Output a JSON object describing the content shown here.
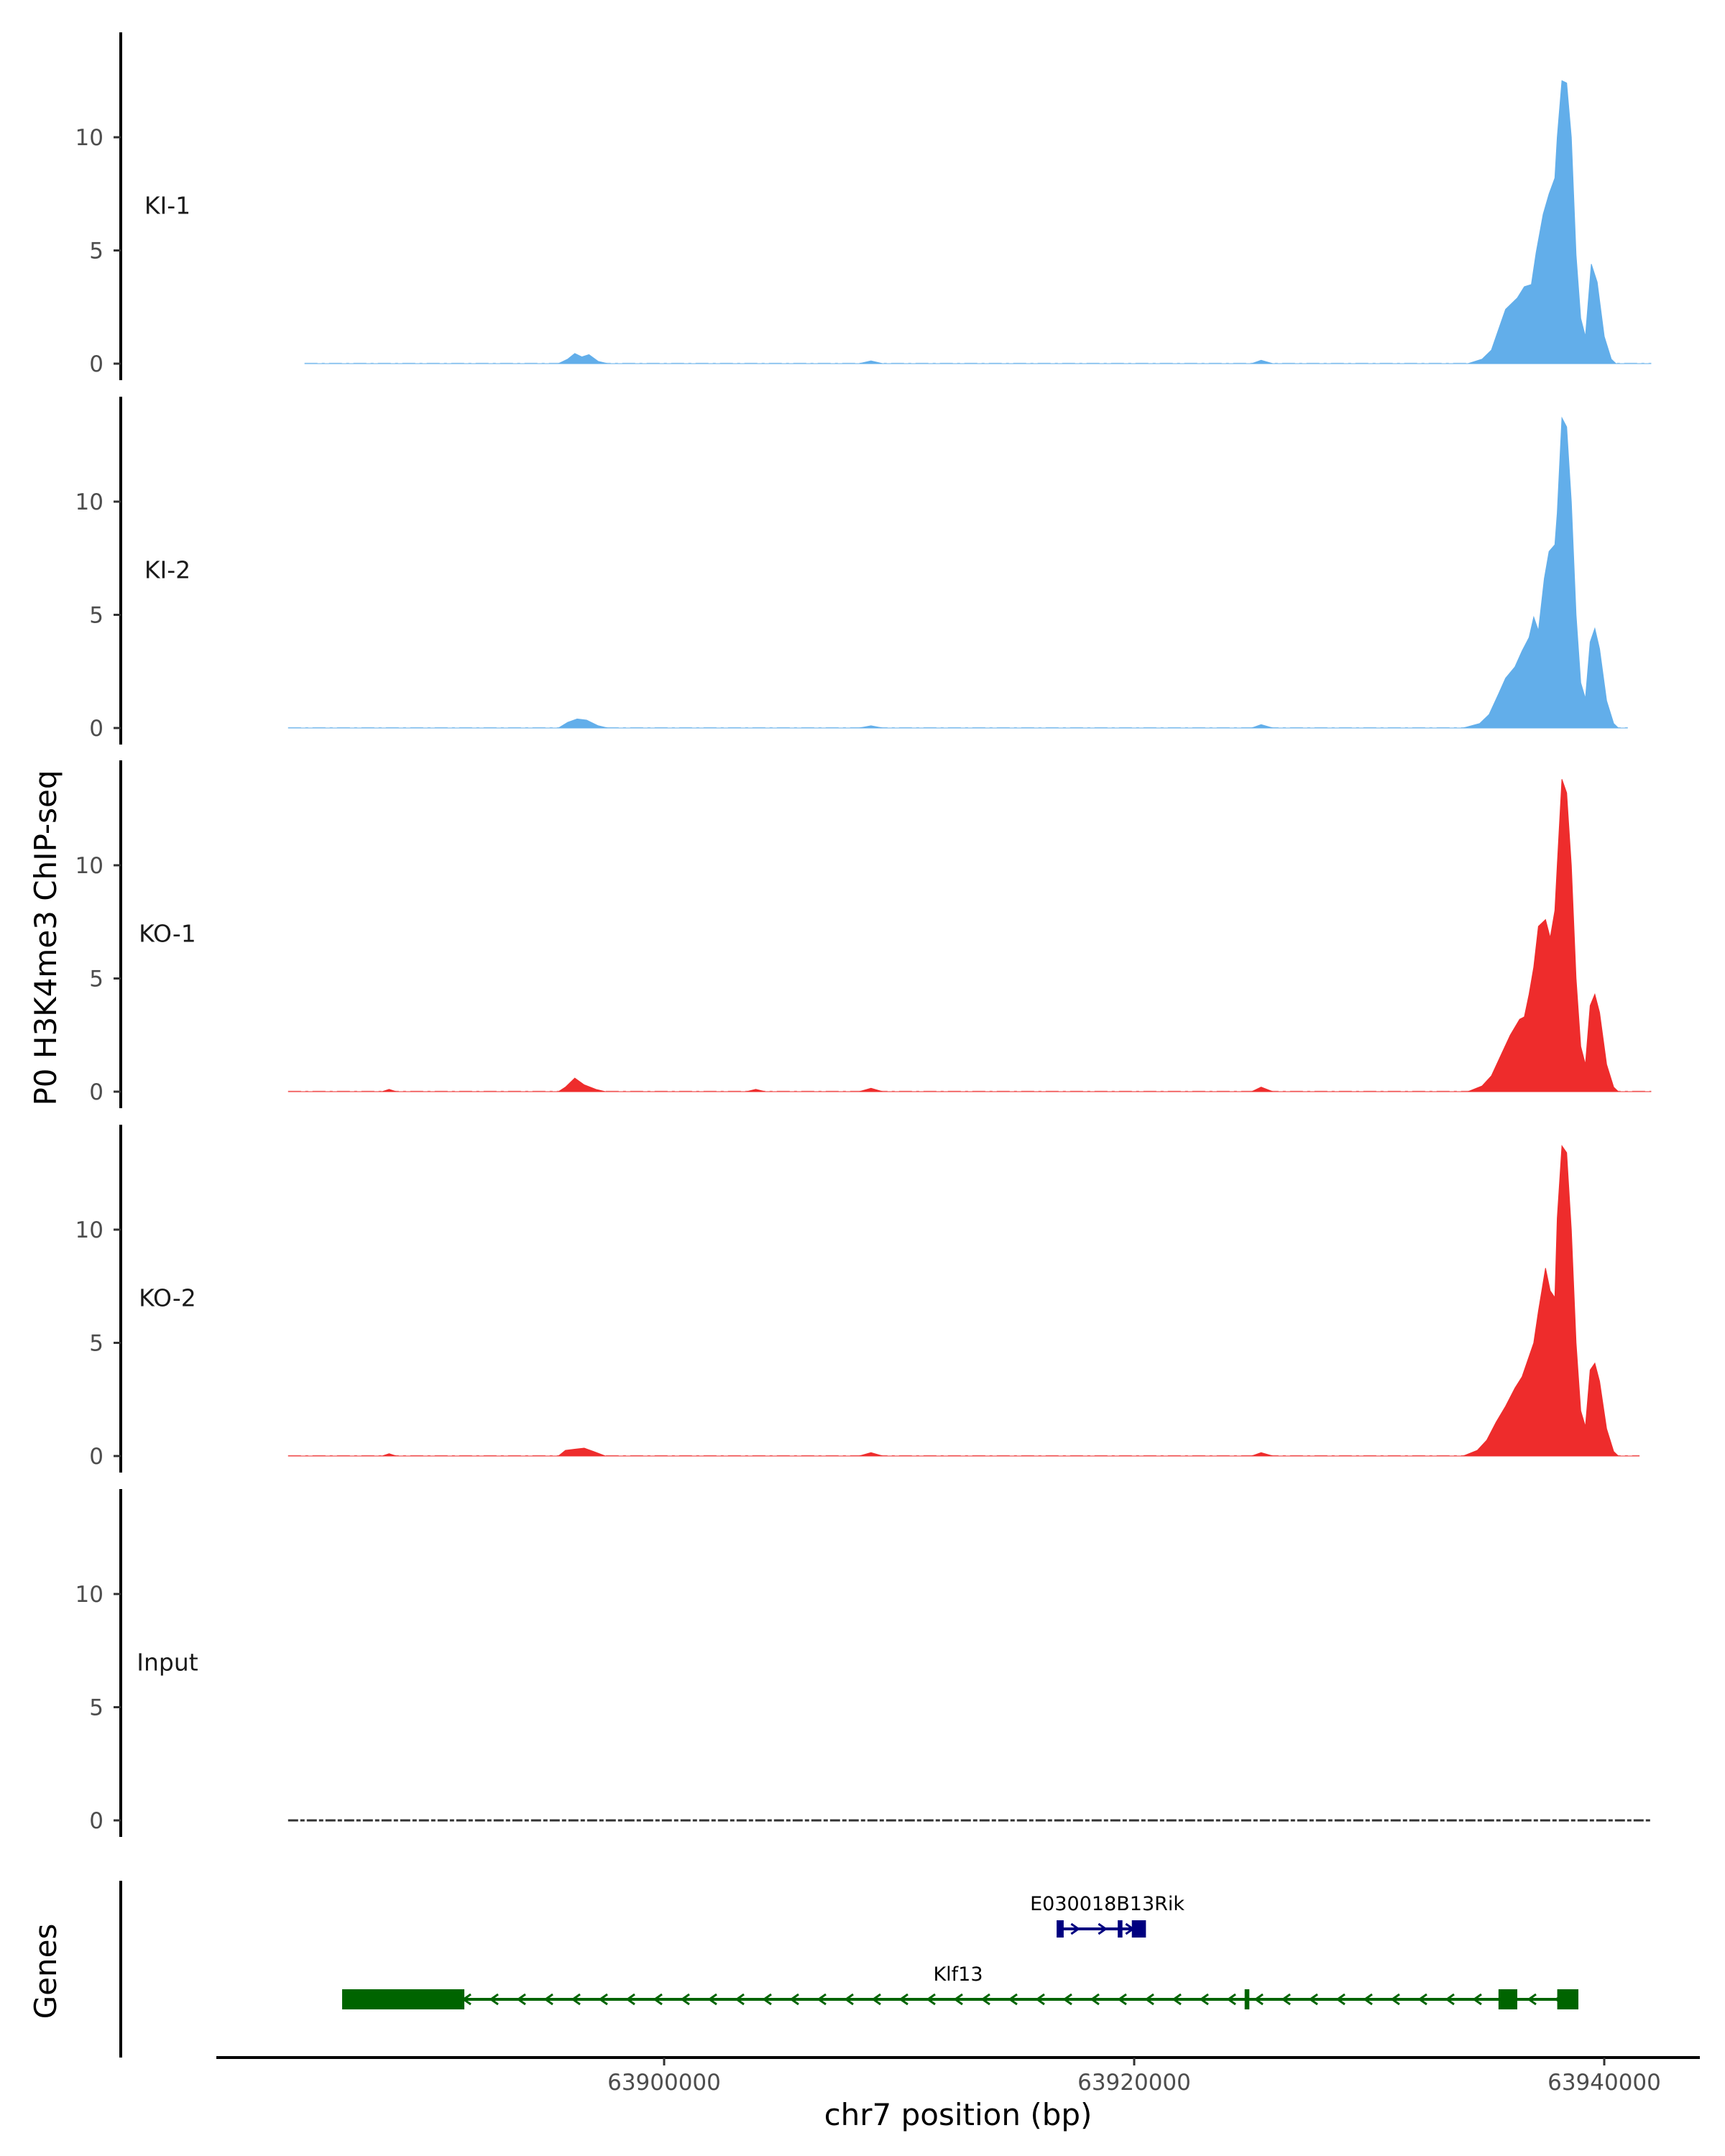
{
  "chart_data": {
    "type": "area",
    "ylabel": "P0 H3K4me3 ChIP-seq",
    "xlabel": "chr7 position (bp)",
    "x_range": [
      63883000,
      63945000
    ],
    "x_ticks": [
      63900000,
      63920000,
      63940000
    ],
    "x_tick_labels": [
      "63900000",
      "63920000",
      "63940000"
    ],
    "y_range": [
      0,
      14.5
    ],
    "y_ticks": [
      0,
      5,
      10
    ],
    "y_tick_labels": [
      "0",
      "5",
      "10"
    ],
    "colors": {
      "KI": "#62aeea",
      "KO": "#ee2c2c",
      "Input": "#333333"
    },
    "tracks": [
      {
        "name": "KI-1",
        "color": "#62aeea",
        "x_start": 63884700,
        "x_end": 63942000,
        "points": [
          [
            63884700,
            0
          ],
          [
            63895500,
            0
          ],
          [
            63895900,
            0.2
          ],
          [
            63896200,
            0.45
          ],
          [
            63896500,
            0.3
          ],
          [
            63896800,
            0.4
          ],
          [
            63897200,
            0.1
          ],
          [
            63897600,
            0
          ],
          [
            63908300,
            0
          ],
          [
            63908800,
            0.12
          ],
          [
            63909300,
            0
          ],
          [
            63925000,
            0
          ],
          [
            63925400,
            0.15
          ],
          [
            63925900,
            0
          ],
          [
            63934200,
            0
          ],
          [
            63934800,
            0.2
          ],
          [
            63935200,
            0.6
          ],
          [
            63935500,
            1.5
          ],
          [
            63935800,
            2.4
          ],
          [
            63936300,
            2.9
          ],
          [
            63936600,
            3.4
          ],
          [
            63936900,
            3.5
          ],
          [
            63937100,
            4.9
          ],
          [
            63937400,
            6.6
          ],
          [
            63937650,
            7.5
          ],
          [
            63937900,
            8.2
          ],
          [
            63938000,
            10
          ],
          [
            63938200,
            12.5
          ],
          [
            63938400,
            12.4
          ],
          [
            63938600,
            10
          ],
          [
            63938800,
            4.8
          ],
          [
            63939000,
            2
          ],
          [
            63939200,
            1.2
          ],
          [
            63939450,
            4.4
          ],
          [
            63939700,
            3.6
          ],
          [
            63940000,
            1.2
          ],
          [
            63940300,
            0.2
          ],
          [
            63940500,
            0
          ],
          [
            63942000,
            0
          ]
        ]
      },
      {
        "name": "KI-2",
        "color": "#62aeea",
        "x_start": 63884000,
        "x_end": 63941000,
        "points": [
          [
            63884000,
            0
          ],
          [
            63895500,
            0
          ],
          [
            63895900,
            0.25
          ],
          [
            63896300,
            0.4
          ],
          [
            63896700,
            0.35
          ],
          [
            63897200,
            0.1
          ],
          [
            63897600,
            0
          ],
          [
            63908300,
            0
          ],
          [
            63908800,
            0.1
          ],
          [
            63909300,
            0
          ],
          [
            63925000,
            0
          ],
          [
            63925400,
            0.15
          ],
          [
            63925900,
            0
          ],
          [
            63934000,
            0
          ],
          [
            63934700,
            0.2
          ],
          [
            63935100,
            0.6
          ],
          [
            63935500,
            1.5
          ],
          [
            63935800,
            2.2
          ],
          [
            63936200,
            2.7
          ],
          [
            63936500,
            3.4
          ],
          [
            63936800,
            4
          ],
          [
            63937000,
            4.9
          ],
          [
            63937200,
            4.3
          ],
          [
            63937450,
            6.6
          ],
          [
            63937650,
            7.8
          ],
          [
            63937900,
            8.1
          ],
          [
            63938000,
            9.5
          ],
          [
            63938200,
            13.7
          ],
          [
            63938400,
            13.3
          ],
          [
            63938600,
            10
          ],
          [
            63938800,
            5
          ],
          [
            63939000,
            2
          ],
          [
            63939200,
            1.3
          ],
          [
            63939400,
            3.8
          ],
          [
            63939600,
            4.4
          ],
          [
            63939800,
            3.5
          ],
          [
            63940100,
            1.2
          ],
          [
            63940400,
            0.2
          ],
          [
            63940600,
            0
          ],
          [
            63941000,
            0
          ]
        ]
      },
      {
        "name": "KO-1",
        "color": "#ee2c2c",
        "x_start": 63884000,
        "x_end": 63942000,
        "points": [
          [
            63884000,
            0
          ],
          [
            63888000,
            0
          ],
          [
            63888300,
            0.1
          ],
          [
            63888600,
            0
          ],
          [
            63895500,
            0
          ],
          [
            63895800,
            0.2
          ],
          [
            63896200,
            0.6
          ],
          [
            63896600,
            0.3
          ],
          [
            63897100,
            0.1
          ],
          [
            63897500,
            0
          ],
          [
            63903500,
            0
          ],
          [
            63903900,
            0.1
          ],
          [
            63904300,
            0
          ],
          [
            63908300,
            0
          ],
          [
            63908800,
            0.15
          ],
          [
            63909300,
            0
          ],
          [
            63925000,
            0
          ],
          [
            63925400,
            0.2
          ],
          [
            63925900,
            0
          ],
          [
            63934200,
            0
          ],
          [
            63934800,
            0.25
          ],
          [
            63935200,
            0.7
          ],
          [
            63935600,
            1.6
          ],
          [
            63936000,
            2.5
          ],
          [
            63936400,
            3.2
          ],
          [
            63936600,
            3.3
          ],
          [
            63936800,
            4.3
          ],
          [
            63937000,
            5.5
          ],
          [
            63937200,
            7.3
          ],
          [
            63937500,
            7.6
          ],
          [
            63937700,
            6.8
          ],
          [
            63937900,
            8
          ],
          [
            63938000,
            10
          ],
          [
            63938200,
            13.8
          ],
          [
            63938400,
            13.2
          ],
          [
            63938600,
            10
          ],
          [
            63938800,
            5
          ],
          [
            63939000,
            2
          ],
          [
            63939200,
            1.2
          ],
          [
            63939400,
            3.8
          ],
          [
            63939600,
            4.3
          ],
          [
            63939800,
            3.5
          ],
          [
            63940100,
            1.2
          ],
          [
            63940400,
            0.2
          ],
          [
            63940600,
            0
          ],
          [
            63942000,
            0
          ]
        ]
      },
      {
        "name": "KO-2",
        "color": "#ee2c2c",
        "x_start": 63884000,
        "x_end": 63941500,
        "points": [
          [
            63884000,
            0
          ],
          [
            63888000,
            0
          ],
          [
            63888300,
            0.1
          ],
          [
            63888600,
            0
          ],
          [
            63895500,
            0
          ],
          [
            63895800,
            0.25
          ],
          [
            63896200,
            0.3
          ],
          [
            63896600,
            0.35
          ],
          [
            63897000,
            0.2
          ],
          [
            63897500,
            0
          ],
          [
            63908300,
            0
          ],
          [
            63908800,
            0.15
          ],
          [
            63909300,
            0
          ],
          [
            63925000,
            0
          ],
          [
            63925400,
            0.15
          ],
          [
            63925900,
            0
          ],
          [
            63934000,
            0
          ],
          [
            63934600,
            0.25
          ],
          [
            63935000,
            0.7
          ],
          [
            63935400,
            1.5
          ],
          [
            63935800,
            2.2
          ],
          [
            63936200,
            3
          ],
          [
            63936500,
            3.5
          ],
          [
            63936800,
            4.4
          ],
          [
            63937000,
            5
          ],
          [
            63937200,
            6.4
          ],
          [
            63937500,
            8.3
          ],
          [
            63937700,
            7.3
          ],
          [
            63937900,
            7
          ],
          [
            63938000,
            10.5
          ],
          [
            63938200,
            13.7
          ],
          [
            63938400,
            13.4
          ],
          [
            63938600,
            10
          ],
          [
            63938800,
            5
          ],
          [
            63939000,
            2
          ],
          [
            63939200,
            1.3
          ],
          [
            63939400,
            3.8
          ],
          [
            63939600,
            4.1
          ],
          [
            63939800,
            3.3
          ],
          [
            63940100,
            1.2
          ],
          [
            63940400,
            0.2
          ],
          [
            63940600,
            0
          ],
          [
            63941500,
            0
          ]
        ]
      },
      {
        "name": "Input",
        "color": "#333333",
        "x_start": 63884000,
        "x_end": 63942000,
        "points": [
          [
            63884000,
            0.02
          ],
          [
            63942000,
            0.02
          ]
        ]
      }
    ],
    "genes_track_label": "Genes",
    "genes": [
      {
        "name": "E030018B13Rik",
        "color": "#000080",
        "strand": "+",
        "start": 63916800,
        "end": 63920300,
        "exons": [
          [
            63916700,
            63917000
          ],
          [
            63919300,
            63919500
          ],
          [
            63919900,
            63920500
          ]
        ]
      },
      {
        "name": "Klf13",
        "color": "#006400",
        "strand": "-",
        "start": 63886300,
        "end": 63938800,
        "exons": [
          [
            63886300,
            63891500
          ],
          [
            63924700,
            63924900
          ],
          [
            63935500,
            63936300
          ],
          [
            63938000,
            63938900
          ]
        ]
      }
    ]
  }
}
